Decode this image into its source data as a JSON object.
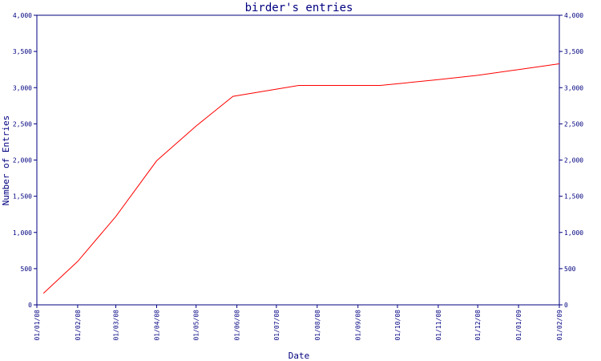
{
  "chart_data": {
    "type": "line",
    "title": "birder's entries",
    "xlabel": "Date",
    "ylabel": "Number of Entries",
    "ylim": [
      0,
      4000
    ],
    "yticks": [
      0,
      500,
      1000,
      1500,
      2000,
      2500,
      3000,
      3500,
      4000
    ],
    "ytick_labels": [
      "0",
      "500",
      "1,000",
      "1,500",
      "2,000",
      "2,500",
      "3,000",
      "3,500",
      "4,000"
    ],
    "xlim": [
      "2008-01-01",
      "2009-02-01"
    ],
    "xticks": [
      "2008-01-01",
      "2008-02-01",
      "2008-03-01",
      "2008-04-01",
      "2008-05-01",
      "2008-06-01",
      "2008-07-01",
      "2008-08-01",
      "2008-09-01",
      "2008-10-01",
      "2008-11-01",
      "2008-12-01",
      "2009-01-01",
      "2009-02-01"
    ],
    "xtick_labels": [
      "01/01/08",
      "01/02/08",
      "01/03/08",
      "01/04/08",
      "01/05/08",
      "01/06/08",
      "01/07/08",
      "01/08/08",
      "01/09/08",
      "01/10/08",
      "01/11/08",
      "01/12/08",
      "01/01/09",
      "01/02/09"
    ],
    "right_axis": true,
    "grid": false,
    "line_color": "#ff0000",
    "axis_color": "#000080",
    "series": [
      {
        "x": [
          "2008-01-06",
          "2008-02-01",
          "2008-03-01",
          "2008-04-01",
          "2008-05-01",
          "2008-05-29",
          "2008-07-18",
          "2008-09-18",
          "2008-11-01",
          "2008-12-01",
          "2009-01-01",
          "2009-02-01"
        ],
        "y": [
          160,
          600,
          1220,
          1990,
          2470,
          2880,
          3030,
          3030,
          3110,
          3170,
          3250,
          3330
        ]
      }
    ]
  }
}
